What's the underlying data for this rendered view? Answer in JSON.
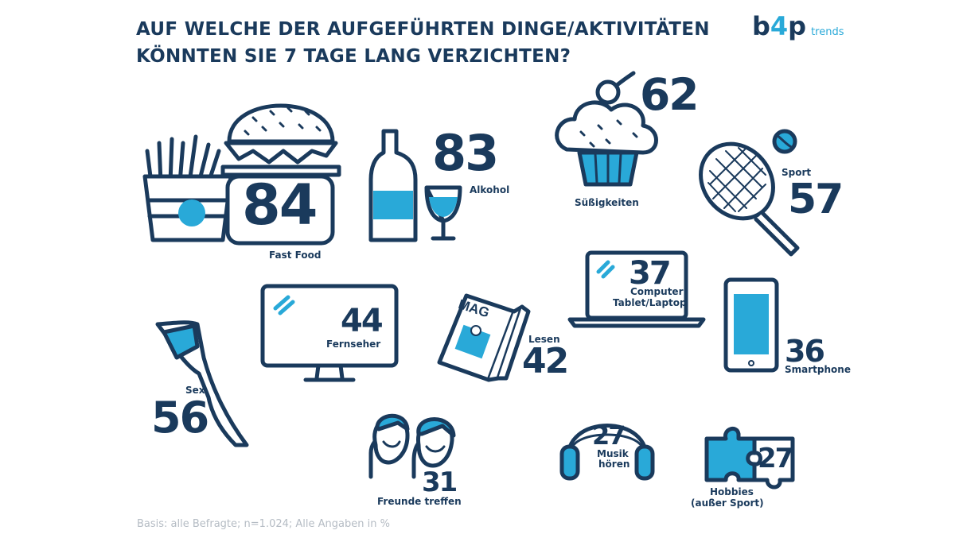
{
  "title": {
    "line1": "AUF WELCHE DER AUFGEFÜHRTEN DINGE/AKTIVITÄTEN",
    "line2": "KÖNNTEN SIE 7 TAGE LANG VERZICHTEN?"
  },
  "logo": {
    "text_b": "b",
    "text_4": "4",
    "text_p": "p",
    "trends": "trends"
  },
  "footnote": "Basis: alle Befragte; n=1.024; Alle Angaben in %",
  "mag_label": "MAG",
  "colors": {
    "navy": "#1a3a5c",
    "accent": "#29a9d8",
    "muted": "#b5bcc4"
  },
  "chart_data": {
    "type": "pictogram",
    "unit": "%",
    "items": [
      {
        "label": "Fast Food",
        "value": 84,
        "icon": "burger-fries-icon"
      },
      {
        "label": "Alkohol",
        "value": 83,
        "icon": "bottle-glass-icon"
      },
      {
        "label": "Süßigkeiten",
        "value": 62,
        "icon": "cupcake-icon"
      },
      {
        "label": "Sport",
        "value": 57,
        "icon": "tennis-racket-icon"
      },
      {
        "label": "Sex",
        "value": 56,
        "icon": "leg-stocking-icon"
      },
      {
        "label": "Fernseher",
        "value": 44,
        "icon": "tv-monitor-icon"
      },
      {
        "label": "Lesen",
        "value": 42,
        "icon": "magazine-icon"
      },
      {
        "label_line1": "Computer",
        "label_line2": "Tablet/Laptop",
        "value": 37,
        "icon": "laptop-icon"
      },
      {
        "label": "Smartphone",
        "value": 36,
        "icon": "smartphone-icon"
      },
      {
        "label": "Freunde treffen",
        "value": 31,
        "icon": "friends-icon"
      },
      {
        "label_line1": "Musik",
        "label_line2": "hören",
        "value": 27,
        "icon": "headphones-icon"
      },
      {
        "label_line1": "Hobbies",
        "label_line2": "(außer Sport)",
        "value": 27,
        "icon": "puzzle-icon"
      }
    ]
  }
}
